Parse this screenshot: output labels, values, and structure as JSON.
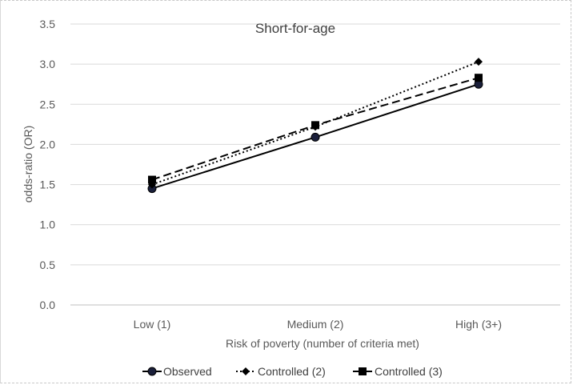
{
  "chart_data": {
    "type": "line",
    "title": "Short-for-age",
    "xlabel": "Risk of poverty (number of criteria met)",
    "ylabel": "odds-ratio (OR)",
    "categories": [
      "Low (1)",
      "Medium (2)",
      "High (3+)"
    ],
    "ylim": [
      0,
      3.5
    ],
    "yticks": [
      "0.0",
      "0.5",
      "1.0",
      "1.5",
      "2.0",
      "2.5",
      "3.0",
      "3.5"
    ],
    "grid": true,
    "legend": "bottom",
    "series": [
      {
        "name": "Observed",
        "values": [
          1.45,
          2.09,
          2.75
        ],
        "marker": "circle",
        "dash": "solid",
        "color": "#000000"
      },
      {
        "name": "Controlled (2)",
        "values": [
          1.5,
          2.22,
          3.03
        ],
        "marker": "diamond",
        "dash": "dotted",
        "color": "#000000"
      },
      {
        "name": "Controlled (3)",
        "values": [
          1.56,
          2.24,
          2.83
        ],
        "marker": "square",
        "dash": "dashed",
        "color": "#000000"
      }
    ]
  }
}
